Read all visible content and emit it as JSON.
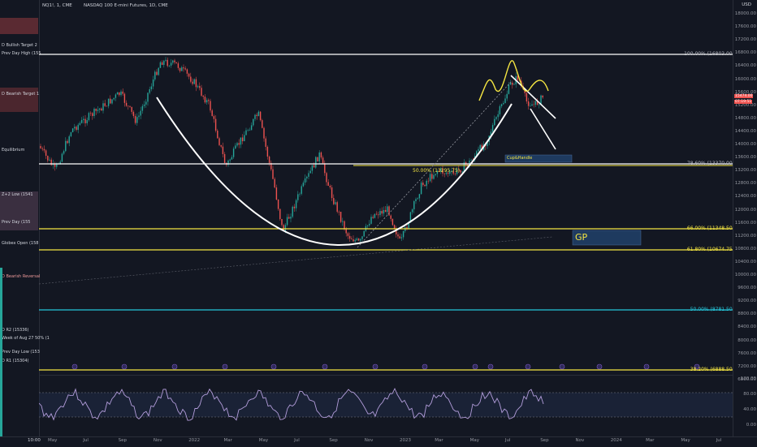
{
  "header": {
    "left_symbol": "NQ1!, 1, CME",
    "main_title": "NASDAQ 100 E-mini Futures, 1D, CME"
  },
  "currency": "USD",
  "left_panel": {
    "labels": [
      "D Bullish Target 2",
      "Prev Day High (155",
      "D Bearish Target 1",
      "Equilibrium",
      "Z+2 Low (1541",
      "Prev Day (155",
      "Globex Open (158",
      "D Bearish Reversal",
      "D R2 (15336)",
      "Week of Aug 27 50% (1",
      "Prev Day Low (153",
      "D R1 (15304)"
    ],
    "time": "10:00"
  },
  "price_axis": [
    "18000.00",
    "17600.00",
    "17200.00",
    "16800.00",
    "16400.00",
    "16000.00",
    "15600.00",
    "15200.00",
    "14800.00",
    "14400.00",
    "14000.00",
    "13600.00",
    "13200.00",
    "12800.00",
    "12400.00",
    "12000.00",
    "11600.00",
    "11200.00",
    "10800.00",
    "10400.00",
    "10000.00",
    "9600.00",
    "9200.00",
    "8800.00",
    "8400.00",
    "8000.00",
    "7600.00",
    "7200.00",
    "6800.00"
  ],
  "osc_axis": [
    "120.00",
    "80.00",
    "40.00",
    "0.00"
  ],
  "price_badge": {
    "price": "15474.00",
    "countdown": "07:19:51"
  },
  "time_axis": [
    "May",
    "Jul",
    "Sep",
    "Nov",
    "2022",
    "Mar",
    "May",
    "Jul",
    "Sep",
    "Nov",
    "2023",
    "Mar",
    "May",
    "Jul",
    "Sep",
    "Nov",
    "2024",
    "Mar",
    "May",
    "Jul"
  ],
  "fib_levels": [
    {
      "label": "100.00% (16803.00)",
      "color": "#ffffff"
    },
    {
      "label": "78.60% (13370.00)",
      "color": "#ffffff"
    },
    {
      "label": "66.00% (11348.50)",
      "color": "#f5e642"
    },
    {
      "label": "61.80% (10674.75)",
      "color": "#f5e642"
    },
    {
      "label": "50.00% (8781.50)",
      "color": "#26c6da"
    },
    {
      "label": "38.20% (6888.50)",
      "color": "#f5e642"
    }
  ],
  "annotations": {
    "mid_fib": "50.00% (13295.75)",
    "cup_handle": "Cup&Handle",
    "gp": "GP"
  },
  "colors": {
    "up": "#26a69a",
    "down": "#ef5350",
    "bg": "#131722"
  }
}
